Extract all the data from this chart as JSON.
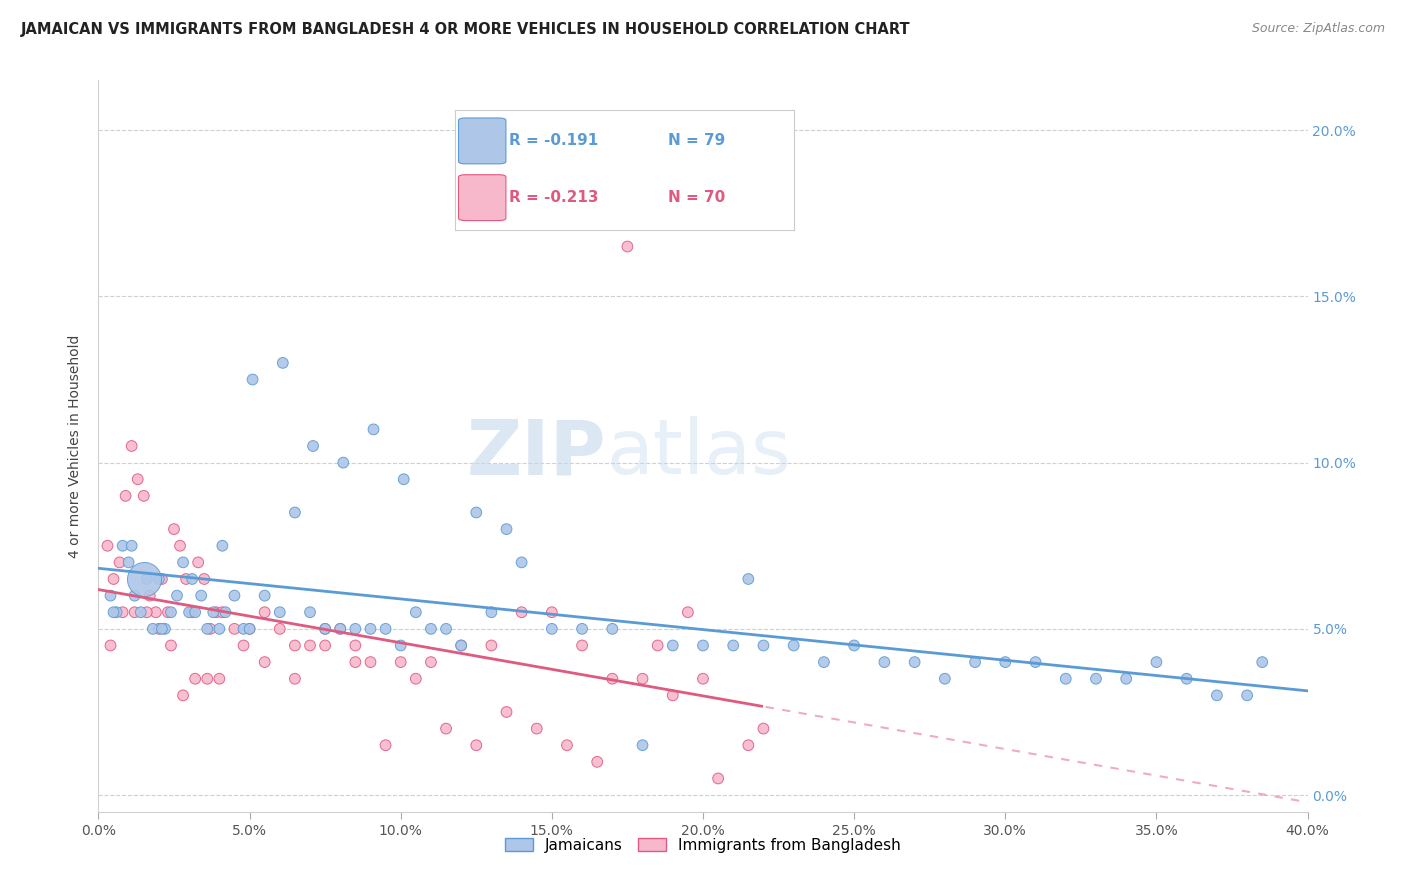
{
  "title": "JAMAICAN VS IMMIGRANTS FROM BANGLADESH 4 OR MORE VEHICLES IN HOUSEHOLD CORRELATION CHART",
  "source": "Source: ZipAtlas.com",
  "xlabel_tick_vals": [
    0.0,
    5.0,
    10.0,
    15.0,
    20.0,
    25.0,
    30.0,
    35.0,
    40.0
  ],
  "ylabel_tick_vals": [
    0.0,
    5.0,
    10.0,
    15.0,
    20.0
  ],
  "xmin": 0.0,
  "xmax": 40.0,
  "ymin": -0.5,
  "ymax": 21.5,
  "blue_color": "#aec6e8",
  "blue_edge_color": "#5b9bd5",
  "pink_color": "#f7b8cc",
  "pink_edge_color": "#e05a80",
  "blue_line_color": "#5b9bd5",
  "pink_line_color": "#e05a80",
  "legend_r_blue": "R = -0.191",
  "legend_n_blue": "N = 79",
  "legend_r_pink": "R = -0.213",
  "legend_n_pink": "N = 70",
  "legend_label_blue": "Jamaicans",
  "legend_label_pink": "Immigrants from Bangladesh",
  "ylabel": "4 or more Vehicles in Household",
  "watermark_zip": "ZIP",
  "watermark_atlas": "atlas",
  "blue_x": [
    0.4,
    0.6,
    0.8,
    1.0,
    1.2,
    1.4,
    1.6,
    1.8,
    2.0,
    2.2,
    2.4,
    2.6,
    2.8,
    3.0,
    3.2,
    3.4,
    3.6,
    3.8,
    4.0,
    4.2,
    4.5,
    4.8,
    5.0,
    5.5,
    6.0,
    6.5,
    7.0,
    7.5,
    8.0,
    8.5,
    9.0,
    9.5,
    10.0,
    10.5,
    11.0,
    11.5,
    12.0,
    13.0,
    14.0,
    15.0,
    16.0,
    17.0,
    18.0,
    19.0,
    20.0,
    21.0,
    22.0,
    23.0,
    24.0,
    25.0,
    26.0,
    27.0,
    28.0,
    29.0,
    30.0,
    31.0,
    32.0,
    33.0,
    34.0,
    35.0,
    36.0,
    37.0,
    38.0,
    38.5,
    0.5,
    1.1,
    2.1,
    3.1,
    4.1,
    5.1,
    6.1,
    7.1,
    8.1,
    9.1,
    10.1,
    12.5,
    13.5,
    21.5
  ],
  "blue_y": [
    6.0,
    5.5,
    7.5,
    7.0,
    6.0,
    5.5,
    6.5,
    5.0,
    6.5,
    5.0,
    5.5,
    6.0,
    7.0,
    5.5,
    5.5,
    6.0,
    5.0,
    5.5,
    5.0,
    5.5,
    6.0,
    5.0,
    5.0,
    6.0,
    5.5,
    8.5,
    5.5,
    5.0,
    5.0,
    5.0,
    5.0,
    5.0,
    4.5,
    5.5,
    5.0,
    5.0,
    4.5,
    5.5,
    7.0,
    5.0,
    5.0,
    5.0,
    1.5,
    4.5,
    4.5,
    4.5,
    4.5,
    4.5,
    4.0,
    4.5,
    4.0,
    4.0,
    3.5,
    4.0,
    4.0,
    4.0,
    3.5,
    3.5,
    3.5,
    4.0,
    3.5,
    3.0,
    3.0,
    4.0,
    5.5,
    7.5,
    5.0,
    6.5,
    7.5,
    12.5,
    13.0,
    10.5,
    10.0,
    11.0,
    9.5,
    8.5,
    8.0,
    6.5
  ],
  "blue_sizes": [
    60,
    60,
    60,
    60,
    60,
    60,
    60,
    60,
    60,
    60,
    60,
    60,
    60,
    60,
    60,
    60,
    60,
    60,
    60,
    60,
    60,
    60,
    60,
    60,
    60,
    60,
    60,
    60,
    60,
    60,
    60,
    60,
    60,
    60,
    60,
    60,
    60,
    60,
    60,
    60,
    60,
    60,
    60,
    60,
    60,
    60,
    60,
    60,
    60,
    60,
    60,
    60,
    60,
    60,
    60,
    60,
    60,
    60,
    60,
    60,
    60,
    60,
    60,
    60,
    60,
    60,
    60,
    60,
    60,
    60,
    60,
    60,
    60,
    60,
    60,
    60,
    60,
    60
  ],
  "pink_x": [
    0.3,
    0.5,
    0.7,
    0.9,
    1.1,
    1.3,
    1.5,
    1.7,
    1.9,
    2.1,
    2.3,
    2.5,
    2.7,
    2.9,
    3.1,
    3.3,
    3.5,
    3.7,
    3.9,
    4.1,
    4.5,
    5.0,
    5.5,
    6.0,
    6.5,
    7.0,
    7.5,
    8.0,
    8.5,
    9.0,
    10.0,
    11.0,
    12.0,
    13.0,
    14.0,
    15.0,
    16.0,
    17.0,
    18.0,
    19.0,
    20.0,
    0.4,
    0.8,
    1.2,
    1.6,
    2.0,
    2.4,
    2.8,
    3.2,
    3.6,
    4.0,
    4.8,
    5.5,
    6.5,
    7.5,
    8.5,
    9.5,
    10.5,
    11.5,
    12.5,
    13.5,
    14.5,
    15.5,
    16.5,
    17.5,
    18.5,
    19.5,
    20.5,
    21.5,
    22.0
  ],
  "pink_y": [
    7.5,
    6.5,
    7.0,
    9.0,
    10.5,
    9.5,
    9.0,
    6.0,
    5.5,
    6.5,
    5.5,
    8.0,
    7.5,
    6.5,
    5.5,
    7.0,
    6.5,
    5.0,
    5.5,
    5.5,
    5.0,
    5.0,
    5.5,
    5.0,
    4.5,
    4.5,
    5.0,
    5.0,
    4.5,
    4.0,
    4.0,
    4.0,
    4.5,
    4.5,
    5.5,
    5.5,
    4.5,
    3.5,
    3.5,
    3.0,
    3.5,
    4.5,
    5.5,
    5.5,
    5.5,
    5.0,
    4.5,
    3.0,
    3.5,
    3.5,
    3.5,
    4.5,
    4.0,
    3.5,
    4.5,
    4.0,
    1.5,
    3.5,
    2.0,
    1.5,
    2.5,
    2.0,
    1.5,
    1.0,
    16.5,
    4.5,
    5.5,
    0.5,
    1.5,
    2.0
  ],
  "pink_sizes": [
    60,
    60,
    60,
    60,
    60,
    60,
    60,
    60,
    60,
    60,
    60,
    60,
    60,
    60,
    60,
    60,
    60,
    60,
    60,
    60,
    60,
    60,
    60,
    60,
    60,
    60,
    60,
    60,
    60,
    60,
    60,
    60,
    60,
    60,
    60,
    60,
    60,
    60,
    60,
    60,
    60,
    60,
    60,
    60,
    60,
    60,
    60,
    60,
    60,
    60,
    60,
    60,
    60,
    60,
    60,
    60,
    60,
    60,
    60,
    60,
    60,
    60,
    60,
    60,
    60,
    60,
    60,
    60,
    60,
    60
  ],
  "big_blue_x": 1.5,
  "big_blue_y": 6.5,
  "big_blue_size": 600,
  "grid_color": "#d0d0d0",
  "tick_color": "#aaaaaa",
  "right_tick_color": "#5b9bd5",
  "title_fontsize": 10.5,
  "source_fontsize": 9,
  "axis_label_fontsize": 10,
  "tick_fontsize": 10
}
